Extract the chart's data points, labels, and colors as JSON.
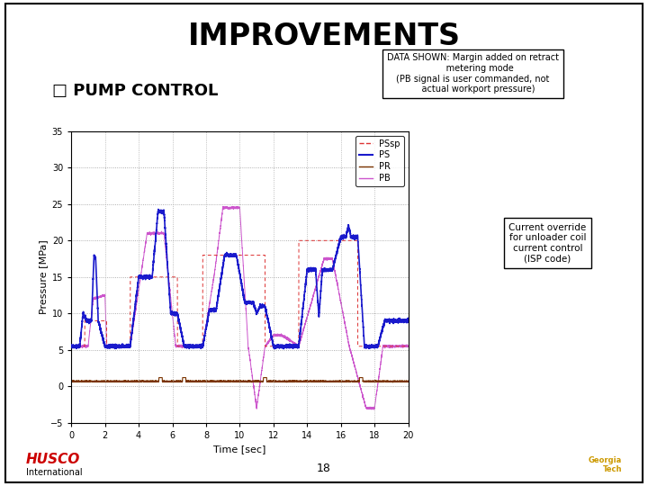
{
  "title": "IMPROVEMENTS",
  "subtitle": "□ PUMP CONTROL",
  "data_box_text": "DATA SHOWN: Margin added on retract\n     metering mode\n(PB signal is user commanded, not\n    actual workport pressure)",
  "annotation_box_text": "Current override\nfor unloader coil\ncurrent control\n(ISP code)",
  "xlabel": "Time [sec]",
  "ylabel": "Pressure [MPa]",
  "xlim": [
    0,
    20
  ],
  "ylim": [
    -5,
    35
  ],
  "yticks": [
    -5,
    0,
    5,
    10,
    15,
    20,
    25,
    30,
    35
  ],
  "xticks": [
    0,
    2,
    4,
    6,
    8,
    10,
    12,
    14,
    16,
    18,
    20
  ],
  "legend_labels": [
    "PSsp",
    "PS",
    "PR",
    "PB"
  ],
  "legend_colors": [
    "#dd3333",
    "#1a1acc",
    "#7a3300",
    "#cc55cc"
  ],
  "bg_color": "#ffffff",
  "plot_bg": "#ffffff",
  "grid_color": "#999999",
  "title_fontsize": 24,
  "subtitle_fontsize": 13,
  "page_number": "18"
}
